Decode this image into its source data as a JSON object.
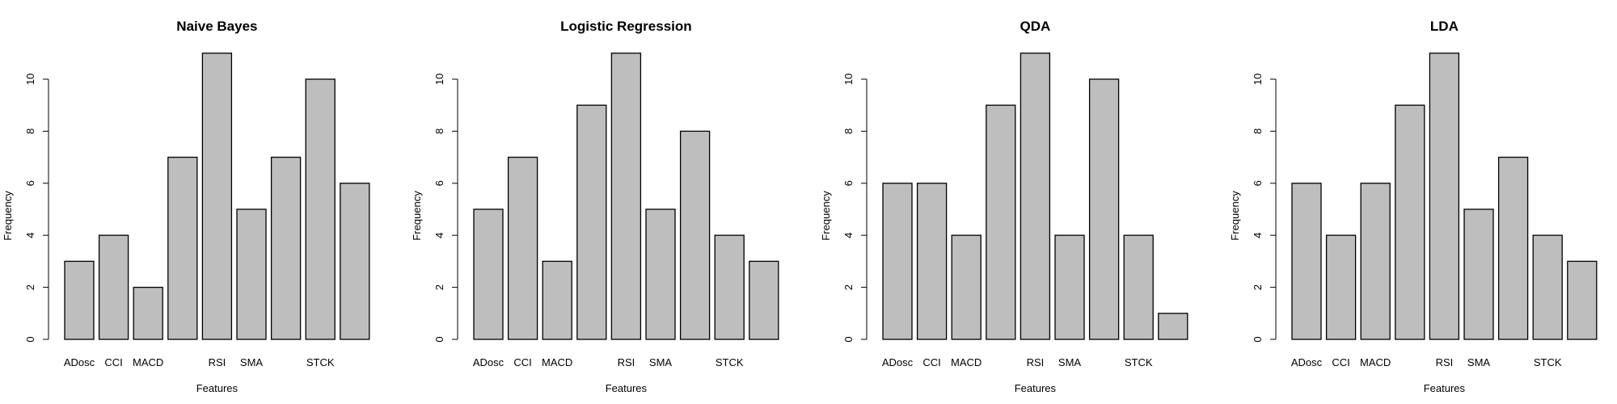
{
  "chart_data": [
    {
      "type": "bar",
      "title": "Naive Bayes",
      "xlabel": "Features",
      "ylabel": "Frequency",
      "ylim": [
        0,
        11
      ],
      "yticks": [
        "0",
        "2",
        "4",
        "6",
        "8",
        "10"
      ],
      "categories": [
        "ADosc",
        "CCI",
        "MACD",
        "",
        "RSI",
        "SMA",
        "",
        "STCK",
        ""
      ],
      "values": [
        3,
        4,
        2,
        7,
        11,
        5,
        7,
        10,
        6
      ]
    },
    {
      "type": "bar",
      "title": "Logistic Regression",
      "xlabel": "Features",
      "ylabel": "Frequency",
      "ylim": [
        0,
        11
      ],
      "yticks": [
        "0",
        "2",
        "4",
        "6",
        "8",
        "10"
      ],
      "categories": [
        "ADosc",
        "CCI",
        "MACD",
        "",
        "RSI",
        "SMA",
        "",
        "STCK",
        ""
      ],
      "values": [
        5,
        7,
        3,
        9,
        11,
        5,
        8,
        4,
        3
      ]
    },
    {
      "type": "bar",
      "title": "QDA",
      "xlabel": "Features",
      "ylabel": "Frequency",
      "ylim": [
        0,
        11
      ],
      "yticks": [
        "0",
        "2",
        "4",
        "6",
        "8",
        "10"
      ],
      "categories": [
        "ADosc",
        "CCI",
        "MACD",
        "",
        "RSI",
        "SMA",
        "",
        "STCK",
        ""
      ],
      "values": [
        6,
        6,
        4,
        9,
        11,
        4,
        10,
        4,
        1
      ]
    },
    {
      "type": "bar",
      "title": "LDA",
      "xlabel": "Features",
      "ylabel": "Frequency",
      "ylim": [
        0,
        11
      ],
      "yticks": [
        "0",
        "2",
        "4",
        "6",
        "8",
        "10"
      ],
      "categories": [
        "ADosc",
        "CCI",
        "MACD",
        "",
        "RSI",
        "SMA",
        "",
        "STCK",
        ""
      ],
      "values": [
        6,
        4,
        6,
        9,
        11,
        5,
        7,
        4,
        3
      ]
    }
  ],
  "colors": {
    "bar_fill": "#bebebe",
    "bar_stroke": "#000000"
  }
}
